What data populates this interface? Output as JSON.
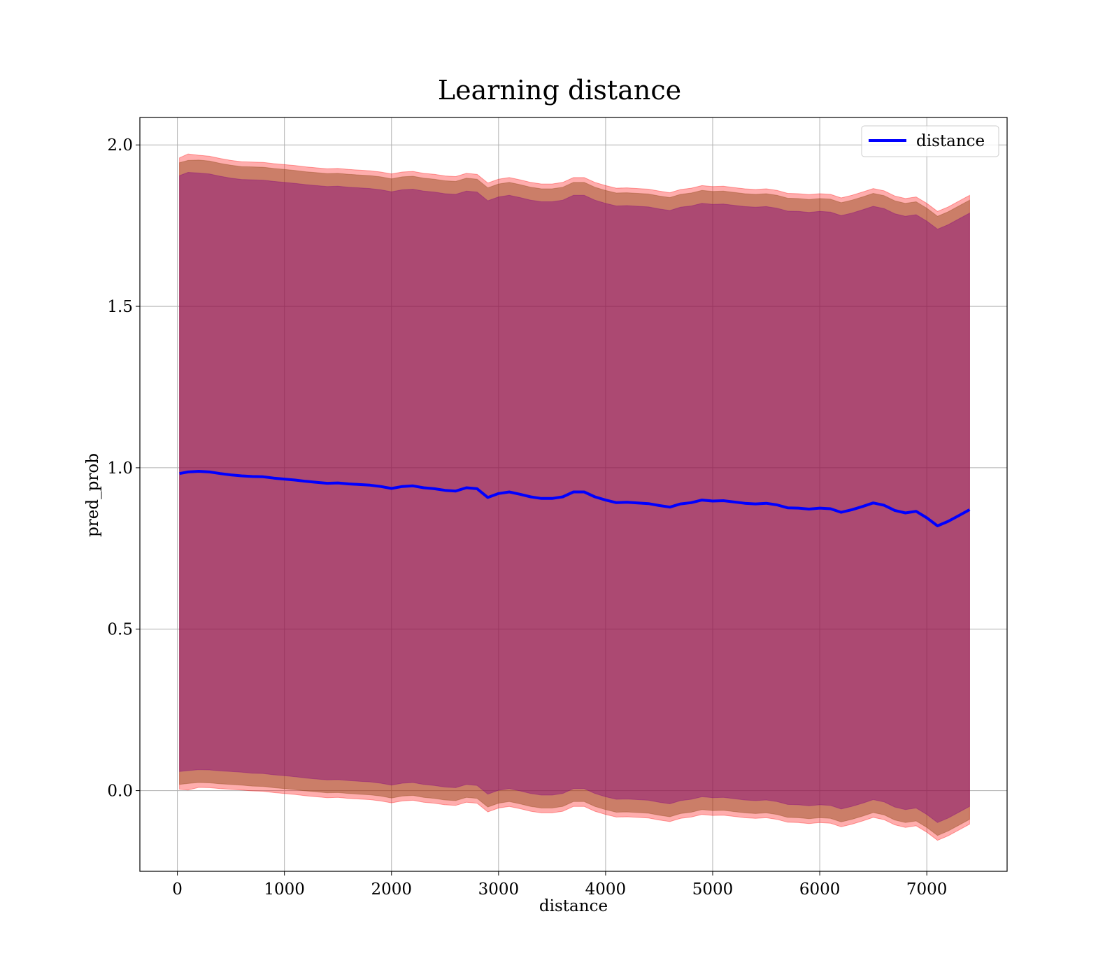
{
  "chart_data": {
    "type": "line",
    "title": "Learning distance",
    "xlabel": "distance",
    "ylabel": "pred_prob",
    "xlim": [
      -350,
      7750
    ],
    "ylim": [
      -0.25,
      2.085
    ],
    "xticks": [
      0,
      1000,
      2000,
      3000,
      4000,
      5000,
      6000,
      7000
    ],
    "yticks": [
      0.0,
      0.5,
      1.0,
      1.5,
      2.0
    ],
    "xtick_labels": [
      "0",
      "1000",
      "2000",
      "3000",
      "4000",
      "5000",
      "6000",
      "7000"
    ],
    "ytick_labels": [
      "0.0",
      "0.5",
      "1.0",
      "1.5",
      "2.0"
    ],
    "grid": true,
    "legend": {
      "position": "top-right",
      "entries": [
        "distance"
      ]
    },
    "colors": {
      "line": "#0000ff",
      "band_outer": "#ff0000",
      "band_inner": "#8b4513",
      "band_core": "#800080",
      "grid": "#b0b0b0"
    },
    "series": [
      {
        "name": "distance",
        "x": [
          20,
          100,
          200,
          300,
          400,
          500,
          600,
          700,
          800,
          900,
          1000,
          1100,
          1200,
          1300,
          1400,
          1500,
          1600,
          1700,
          1800,
          1900,
          2000,
          2100,
          2200,
          2300,
          2400,
          2500,
          2600,
          2700,
          2800,
          2900,
          3000,
          3100,
          3200,
          3300,
          3400,
          3500,
          3600,
          3700,
          3800,
          3900,
          4000,
          4100,
          4200,
          4300,
          4400,
          4500,
          4600,
          4700,
          4800,
          4900,
          5000,
          5100,
          5200,
          5300,
          5400,
          5500,
          5600,
          5700,
          5800,
          5900,
          6000,
          6100,
          6200,
          6300,
          6400,
          6500,
          6600,
          6700,
          6800,
          6900,
          7000,
          7100,
          7200,
          7300,
          7400
        ],
        "y": [
          0.982,
          0.987,
          0.989,
          0.987,
          0.982,
          0.978,
          0.975,
          0.973,
          0.972,
          0.968,
          0.965,
          0.962,
          0.958,
          0.955,
          0.952,
          0.953,
          0.95,
          0.948,
          0.946,
          0.942,
          0.936,
          0.942,
          0.944,
          0.938,
          0.935,
          0.93,
          0.928,
          0.938,
          0.935,
          0.908,
          0.92,
          0.925,
          0.918,
          0.91,
          0.905,
          0.905,
          0.91,
          0.925,
          0.925,
          0.91,
          0.9,
          0.892,
          0.893,
          0.891,
          0.889,
          0.883,
          0.878,
          0.888,
          0.892,
          0.9,
          0.897,
          0.898,
          0.894,
          0.89,
          0.888,
          0.89,
          0.885,
          0.876,
          0.875,
          0.872,
          0.875,
          0.873,
          0.862,
          0.87,
          0.88,
          0.891,
          0.884,
          0.868,
          0.86,
          0.865,
          0.845,
          0.82,
          0.834,
          0.852,
          0.87
        ]
      }
    ],
    "bands": [
      {
        "label_visible": false,
        "upper": [
          1.96,
          1.972,
          1.968,
          1.965,
          1.958,
          1.952,
          1.948,
          1.947,
          1.946,
          1.942,
          1.939,
          1.936,
          1.932,
          1.929,
          1.926,
          1.927,
          1.924,
          1.922,
          1.92,
          1.916,
          1.91,
          1.916,
          1.918,
          1.912,
          1.909,
          1.904,
          1.902,
          1.912,
          1.909,
          1.882,
          1.894,
          1.899,
          1.892,
          1.884,
          1.879,
          1.879,
          1.884,
          1.899,
          1.899,
          1.884,
          1.874,
          1.866,
          1.867,
          1.865,
          1.863,
          1.857,
          1.852,
          1.862,
          1.866,
          1.874,
          1.871,
          1.872,
          1.868,
          1.864,
          1.862,
          1.864,
          1.859,
          1.85,
          1.849,
          1.846,
          1.849,
          1.847,
          1.836,
          1.844,
          1.854,
          1.865,
          1.858,
          1.842,
          1.834,
          1.839,
          1.819,
          1.794,
          1.808,
          1.826,
          1.844
        ],
        "lower": [
          0.004,
          0.002,
          0.01,
          0.009,
          0.006,
          0.004,
          0.002,
          -0.001,
          -0.002,
          -0.006,
          -0.009,
          -0.012,
          -0.016,
          -0.019,
          -0.022,
          -0.021,
          -0.024,
          -0.026,
          -0.028,
          -0.032,
          -0.038,
          -0.032,
          -0.03,
          -0.036,
          -0.039,
          -0.044,
          -0.046,
          -0.036,
          -0.039,
          -0.066,
          -0.054,
          -0.049,
          -0.056,
          -0.064,
          -0.069,
          -0.069,
          -0.064,
          -0.049,
          -0.049,
          -0.064,
          -0.074,
          -0.082,
          -0.081,
          -0.083,
          -0.085,
          -0.091,
          -0.096,
          -0.086,
          -0.082,
          -0.074,
          -0.077,
          -0.076,
          -0.08,
          -0.084,
          -0.086,
          -0.084,
          -0.089,
          -0.098,
          -0.099,
          -0.102,
          -0.099,
          -0.101,
          -0.112,
          -0.104,
          -0.094,
          -0.083,
          -0.09,
          -0.106,
          -0.114,
          -0.109,
          -0.129,
          -0.154,
          -0.14,
          -0.122,
          -0.104
        ]
      },
      {
        "label_visible": false,
        "upper": [
          1.945,
          1.952,
          1.953,
          1.95,
          1.943,
          1.937,
          1.933,
          1.932,
          1.931,
          1.927,
          1.924,
          1.921,
          1.917,
          1.914,
          1.911,
          1.912,
          1.909,
          1.907,
          1.905,
          1.901,
          1.895,
          1.901,
          1.903,
          1.897,
          1.894,
          1.889,
          1.887,
          1.897,
          1.894,
          1.867,
          1.879,
          1.884,
          1.877,
          1.869,
          1.864,
          1.864,
          1.869,
          1.884,
          1.884,
          1.869,
          1.859,
          1.851,
          1.852,
          1.85,
          1.848,
          1.842,
          1.837,
          1.847,
          1.851,
          1.859,
          1.856,
          1.857,
          1.853,
          1.849,
          1.847,
          1.849,
          1.844,
          1.835,
          1.834,
          1.831,
          1.834,
          1.832,
          1.821,
          1.829,
          1.839,
          1.85,
          1.843,
          1.827,
          1.819,
          1.824,
          1.804,
          1.779,
          1.793,
          1.811,
          1.829
        ],
        "lower": [
          0.019,
          0.022,
          0.025,
          0.024,
          0.021,
          0.019,
          0.017,
          0.014,
          0.013,
          0.009,
          0.006,
          0.003,
          -0.001,
          -0.004,
          -0.007,
          -0.006,
          -0.009,
          -0.011,
          -0.013,
          -0.017,
          -0.023,
          -0.017,
          -0.015,
          -0.021,
          -0.024,
          -0.029,
          -0.031,
          -0.021,
          -0.024,
          -0.051,
          -0.039,
          -0.034,
          -0.041,
          -0.049,
          -0.054,
          -0.054,
          -0.049,
          -0.034,
          -0.034,
          -0.049,
          -0.059,
          -0.067,
          -0.066,
          -0.068,
          -0.07,
          -0.076,
          -0.081,
          -0.071,
          -0.067,
          -0.059,
          -0.062,
          -0.061,
          -0.065,
          -0.069,
          -0.071,
          -0.069,
          -0.074,
          -0.083,
          -0.084,
          -0.087,
          -0.084,
          -0.086,
          -0.097,
          -0.089,
          -0.079,
          -0.068,
          -0.075,
          -0.091,
          -0.099,
          -0.094,
          -0.114,
          -0.139,
          -0.125,
          -0.107,
          -0.089
        ]
      },
      {
        "label_visible": false,
        "upper": [
          1.905,
          1.915,
          1.913,
          1.91,
          1.903,
          1.897,
          1.893,
          1.892,
          1.891,
          1.887,
          1.884,
          1.881,
          1.877,
          1.874,
          1.871,
          1.872,
          1.869,
          1.867,
          1.865,
          1.861,
          1.855,
          1.861,
          1.863,
          1.857,
          1.854,
          1.849,
          1.847,
          1.857,
          1.854,
          1.827,
          1.839,
          1.844,
          1.837,
          1.829,
          1.824,
          1.824,
          1.829,
          1.844,
          1.844,
          1.829,
          1.819,
          1.811,
          1.812,
          1.81,
          1.808,
          1.802,
          1.797,
          1.807,
          1.811,
          1.819,
          1.816,
          1.817,
          1.813,
          1.809,
          1.807,
          1.809,
          1.804,
          1.795,
          1.794,
          1.791,
          1.794,
          1.792,
          1.781,
          1.789,
          1.799,
          1.81,
          1.803,
          1.787,
          1.779,
          1.784,
          1.764,
          1.739,
          1.753,
          1.771,
          1.789
        ],
        "lower": [
          0.059,
          0.062,
          0.065,
          0.064,
          0.061,
          0.059,
          0.057,
          0.054,
          0.053,
          0.049,
          0.046,
          0.043,
          0.039,
          0.036,
          0.033,
          0.034,
          0.031,
          0.029,
          0.027,
          0.023,
          0.017,
          0.023,
          0.025,
          0.019,
          0.016,
          0.011,
          0.009,
          0.019,
          0.016,
          -0.011,
          0.001,
          0.006,
          -0.001,
          -0.009,
          -0.014,
          -0.014,
          -0.009,
          0.006,
          0.006,
          -0.009,
          -0.019,
          -0.027,
          -0.026,
          -0.028,
          -0.03,
          -0.036,
          -0.041,
          -0.031,
          -0.027,
          -0.019,
          -0.022,
          -0.021,
          -0.025,
          -0.029,
          -0.031,
          -0.029,
          -0.034,
          -0.043,
          -0.044,
          -0.047,
          -0.044,
          -0.046,
          -0.057,
          -0.049,
          -0.039,
          -0.028,
          -0.035,
          -0.051,
          -0.059,
          -0.054,
          -0.074,
          -0.099,
          -0.085,
          -0.067,
          -0.049
        ]
      }
    ]
  }
}
